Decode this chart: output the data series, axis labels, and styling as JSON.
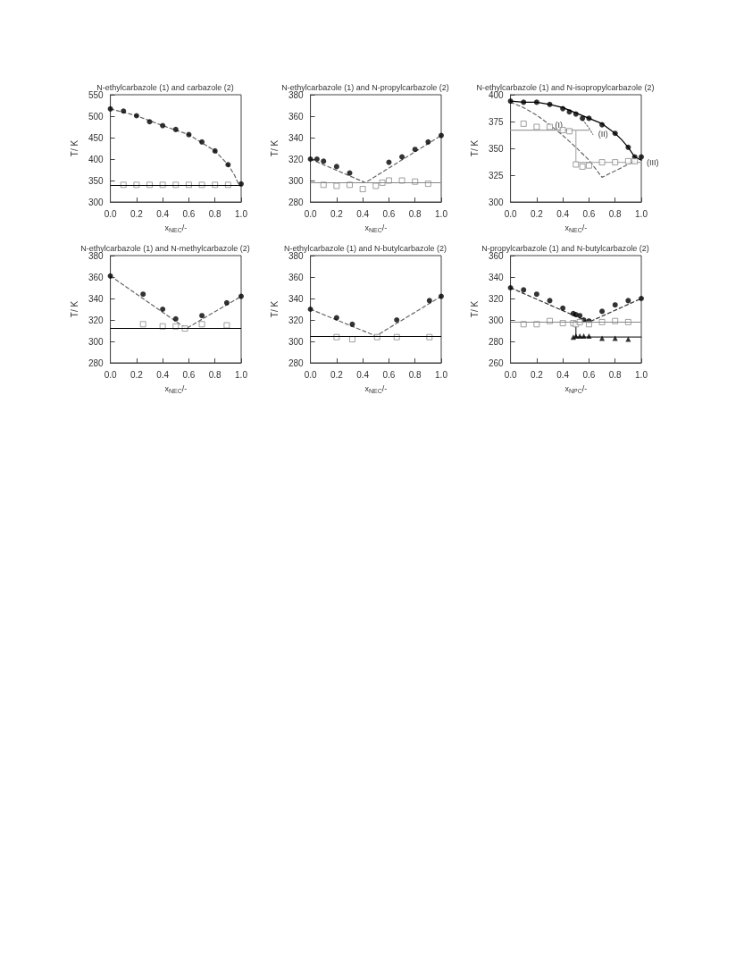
{
  "chart_data": [
    {
      "type": "scatter",
      "title": "N-ethylcarbazole (1) and carbazole (2)",
      "xlabel": "x$_{NEC}$/-",
      "ylabel": "T/ K",
      "xlim": [
        0,
        1
      ],
      "xticks": [
        {
          "value": 0,
          "label": "0.0"
        },
        {
          "value": 0.2,
          "label": "0.2"
        },
        {
          "value": 0.4,
          "label": "0.4"
        },
        {
          "value": 0.6,
          "label": "0.6"
        },
        {
          "value": 0.8,
          "label": "0.8"
        },
        {
          "value": 1,
          "label": "1.0"
        }
      ],
      "ylim": [
        300,
        550
      ],
      "yticks": [
        300,
        350,
        400,
        450,
        500,
        550
      ],
      "grid": false,
      "series": [
        {
          "type": "line",
          "color": "#666666",
          "line_style": "dashed",
          "marker": "none",
          "x": [
            0,
            0.2,
            0.4,
            0.6,
            0.8,
            0.9,
            0.95,
            0.98
          ],
          "values": [
            517,
            501,
            478,
            457,
            419,
            387,
            362,
            342
          ]
        },
        {
          "color": "#000000",
          "marker": "circle",
          "x": [
            0,
            0.1,
            0.2,
            0.3,
            0.4,
            0.5,
            0.6,
            0.7,
            0.8,
            0.9,
            1
          ],
          "values": [
            517,
            512,
            501,
            487,
            478,
            469,
            457,
            440,
            419,
            387,
            342
          ]
        },
        {
          "color": "#888888",
          "marker": "square",
          "x": [
            0.1,
            0.2,
            0.3,
            0.4,
            0.5,
            0.6,
            0.7,
            0.8,
            0.9
          ],
          "values": [
            340,
            340,
            340,
            340,
            340,
            340,
            340,
            340,
            340
          ]
        }
      ],
      "ref_lines": [
        {
          "axis": "y",
          "value": 340,
          "color": "#000000"
        }
      ]
    },
    {
      "type": "scatter",
      "title": "N-ethylcarbazole (1) and N-propylcarbazole (2)",
      "xlabel": "x$_{NEC}$/-",
      "ylabel": "T/ K",
      "xlim": [
        0,
        1
      ],
      "xticks": [
        {
          "value": 0,
          "label": "0.0"
        },
        {
          "value": 0.2,
          "label": "0.2"
        },
        {
          "value": 0.4,
          "label": "0.4"
        },
        {
          "value": 0.6,
          "label": "0.6"
        },
        {
          "value": 0.8,
          "label": "0.8"
        },
        {
          "value": 1,
          "label": "1.0"
        }
      ],
      "ylim": [
        280,
        380
      ],
      "yticks": [
        280,
        300,
        320,
        340,
        360,
        380
      ],
      "grid": false,
      "series": [
        {
          "type": "line",
          "color": "#666666",
          "line_style": "dashed",
          "marker": "none",
          "x": [
            0,
            0.42,
            1
          ],
          "values": [
            320,
            298,
            342
          ]
        },
        {
          "color": "#000000",
          "marker": "circle",
          "x": [
            0,
            0.05,
            0.1,
            0.2,
            0.3,
            0.6,
            0.7,
            0.8,
            0.9,
            1
          ],
          "values": [
            320,
            320,
            318,
            313,
            307,
            317,
            322,
            329,
            336,
            342
          ]
        },
        {
          "color": "#888888",
          "marker": "square",
          "x": [
            0.1,
            0.2,
            0.3,
            0.4,
            0.5,
            0.55,
            0.6,
            0.7,
            0.8,
            0.9
          ],
          "values": [
            296,
            295,
            296,
            292,
            295,
            298,
            300,
            300,
            299,
            297
          ]
        }
      ],
      "ref_lines": [
        {
          "axis": "y",
          "value": 298,
          "color": "#888888"
        }
      ]
    },
    {
      "type": "scatter",
      "title": "N-ethylcarbazole (1) and N-isopropylcarbazole (2)",
      "xlabel": "x$_{NEC}$/-",
      "ylabel": "T/ K",
      "xlim": [
        0,
        1
      ],
      "xticks": [
        {
          "value": 0,
          "label": "0.0"
        },
        {
          "value": 0.2,
          "label": "0.2"
        },
        {
          "value": 0.4,
          "label": "0.4"
        },
        {
          "value": 0.6,
          "label": "0.6"
        },
        {
          "value": 0.8,
          "label": "0.8"
        },
        {
          "value": 1,
          "label": "1.0"
        }
      ],
      "ylim": [
        300,
        400
      ],
      "yticks": [
        300,
        325,
        350,
        375,
        400
      ],
      "grid": false,
      "series": [
        {
          "type": "line",
          "color": "#000000",
          "line_style": "solid",
          "marker": "none",
          "x": [
            0,
            0.1,
            0.2,
            0.3,
            0.4,
            0.5,
            0.6,
            0.7,
            0.8,
            0.85,
            0.9,
            0.95,
            1
          ],
          "values": [
            394,
            393,
            393,
            391,
            388,
            383,
            378,
            373,
            364,
            358,
            351,
            342,
            339
          ]
        },
        {
          "type": "line",
          "color": "#666666",
          "line_style": "dashed",
          "marker": "none",
          "x": [
            0,
            0.1,
            0.2,
            0.3,
            0.4,
            0.5,
            0.6,
            0.7,
            0.95
          ],
          "values": [
            393,
            388,
            381,
            372,
            362,
            351,
            339,
            323,
            338
          ]
        },
        {
          "type": "line",
          "color": "#7a7a7a",
          "line_style": "dotted",
          "marker": "none",
          "x": [
            0.55,
            0.6,
            0.63
          ],
          "values": [
            377,
            369,
            363
          ]
        },
        {
          "type": "line",
          "color": "#a0a0a0",
          "line_style": "solid",
          "marker": "none",
          "x": [
            0,
            0.6
          ],
          "values": [
            367,
            367
          ]
        },
        {
          "type": "line",
          "color": "#b0b0b0",
          "line_style": "solid",
          "marker": "none",
          "x": [
            0.5,
            0.5,
            1
          ],
          "values": [
            367,
            337,
            337
          ]
        },
        {
          "color": "#000000",
          "marker": "circle",
          "x": [
            0,
            0.1,
            0.2,
            0.3,
            0.4,
            0.45,
            0.5,
            0.55,
            0.6,
            0.7,
            0.8,
            0.9,
            0.95,
            1
          ],
          "values": [
            394,
            393,
            393,
            391,
            387,
            384,
            382,
            378,
            378,
            372,
            364,
            351,
            342,
            342
          ]
        },
        {
          "color": "#888888",
          "marker": "square",
          "x": [
            0.1,
            0.2,
            0.3,
            0.4,
            0.45,
            0.5,
            0.55,
            0.6,
            0.7,
            0.8,
            0.9,
            0.95
          ],
          "values": [
            373,
            370,
            370,
            367,
            366,
            335,
            333,
            334,
            337,
            337,
            338,
            338
          ]
        }
      ],
      "annotations": [
        {
          "text": "(I)",
          "x": 0.3,
          "y": 372
        },
        {
          "text": "(II)",
          "x": 0.63,
          "y": 363
        },
        {
          "text": "(III)",
          "x": 1,
          "y": 337
        }
      ]
    },
    {
      "type": "scatter",
      "title": "N-ethylcarbazole (1) and N-methylcarbazole (2)",
      "xlabel": "x$_{NEC}$/-",
      "ylabel": "T/ K",
      "xlim": [
        0,
        1
      ],
      "xticks": [
        {
          "value": 0,
          "label": "0.0"
        },
        {
          "value": 0.2,
          "label": "0.2"
        },
        {
          "value": 0.4,
          "label": "0.4"
        },
        {
          "value": 0.6,
          "label": "0.6"
        },
        {
          "value": 0.8,
          "label": "0.8"
        },
        {
          "value": 1,
          "label": "1.0"
        }
      ],
      "ylim": [
        280,
        380
      ],
      "yticks": [
        280,
        300,
        320,
        340,
        360,
        380
      ],
      "grid": false,
      "series": [
        {
          "type": "line",
          "color": "#666666",
          "line_style": "dashed",
          "marker": "none",
          "x": [
            0,
            0.58,
            1
          ],
          "values": [
            361,
            312,
            342
          ]
        },
        {
          "color": "#000000",
          "marker": "circle",
          "x": [
            0,
            0.25,
            0.4,
            0.5,
            0.7,
            0.89,
            1
          ],
          "values": [
            361,
            344,
            330,
            321,
            324,
            336,
            342
          ]
        },
        {
          "color": "#888888",
          "marker": "square",
          "x": [
            0.25,
            0.4,
            0.5,
            0.57,
            0.7,
            0.89
          ],
          "values": [
            316,
            314,
            314,
            312,
            316,
            315
          ]
        }
      ],
      "ref_lines": [
        {
          "axis": "y",
          "value": 312,
          "color": "#000000"
        }
      ]
    },
    {
      "type": "scatter",
      "title": "N-ethylcarbazole (1) and N-butylcarbazole (2)",
      "xlabel": "x$_{NEC}$/-",
      "ylabel": "T/ K",
      "xlim": [
        0,
        1
      ],
      "xticks": [
        {
          "value": 0,
          "label": "0.0"
        },
        {
          "value": 0.2,
          "label": "0.2"
        },
        {
          "value": 0.4,
          "label": "0.4"
        },
        {
          "value": 0.6,
          "label": "0.6"
        },
        {
          "value": 0.8,
          "label": "0.8"
        },
        {
          "value": 1,
          "label": "1.0"
        }
      ],
      "ylim": [
        280,
        380
      ],
      "yticks": [
        280,
        300,
        320,
        340,
        360,
        380
      ],
      "grid": false,
      "series": [
        {
          "type": "line",
          "color": "#666666",
          "line_style": "dashed",
          "marker": "none",
          "x": [
            0,
            0.5,
            1
          ],
          "values": [
            330,
            305,
            342
          ]
        },
        {
          "color": "#000000",
          "marker": "circle",
          "x": [
            0,
            0.2,
            0.32,
            0.66,
            0.91,
            1
          ],
          "values": [
            330,
            322,
            316,
            320,
            338,
            342
          ]
        },
        {
          "color": "#888888",
          "marker": "square",
          "x": [
            0.2,
            0.32,
            0.51,
            0.66,
            0.91
          ],
          "values": [
            304,
            302,
            304,
            304,
            304
          ]
        }
      ],
      "ref_lines": [
        {
          "axis": "y",
          "value": 305,
          "color": "#000000"
        }
      ]
    },
    {
      "type": "scatter",
      "title": "N-propylcarbazole (1) and N-butylcarbazole (2)",
      "xlabel": "x$_{NPC}$/-",
      "ylabel": "T/ K",
      "xlim": [
        0,
        1
      ],
      "xticks": [
        {
          "value": 0,
          "label": "0.0"
        },
        {
          "value": 0.2,
          "label": "0.2"
        },
        {
          "value": 0.4,
          "label": "0.4"
        },
        {
          "value": 0.6,
          "label": "0.6"
        },
        {
          "value": 0.8,
          "label": "0.8"
        },
        {
          "value": 1,
          "label": "1.0"
        }
      ],
      "ylim": [
        260,
        360
      ],
      "yticks": [
        260,
        280,
        300,
        320,
        340,
        360
      ],
      "grid": false,
      "series": [
        {
          "type": "line",
          "color": "#333333",
          "line_style": "dashed",
          "marker": "none",
          "x": [
            0,
            0.6,
            1
          ],
          "values": [
            330,
            298,
            320
          ]
        },
        {
          "type": "line",
          "color": "#333333",
          "line_style": "solid",
          "marker": "none",
          "x": [
            0.5,
            0.5,
            1
          ],
          "values": [
            298,
            284,
            284
          ]
        },
        {
          "color": "#000000",
          "marker": "circle",
          "x": [
            0,
            0.1,
            0.2,
            0.3,
            0.4,
            0.48,
            0.5,
            0.53,
            0.56,
            0.6,
            0.7,
            0.8,
            0.9,
            1
          ],
          "values": [
            330,
            328,
            324,
            318,
            311,
            306,
            305,
            304,
            300,
            299,
            308,
            314,
            318,
            320
          ]
        },
        {
          "color": "#888888",
          "marker": "square",
          "x": [
            0.1,
            0.2,
            0.3,
            0.4,
            0.48,
            0.5,
            0.53,
            0.6,
            0.7,
            0.8,
            0.9
          ],
          "values": [
            296,
            296,
            299,
            297,
            297,
            296,
            298,
            296,
            298,
            299,
            298
          ]
        },
        {
          "color": "#000000",
          "marker": "triangle",
          "x": [
            0.48,
            0.5,
            0.53,
            0.56,
            0.6,
            0.7,
            0.8,
            0.9
          ],
          "values": [
            284,
            285,
            285,
            285,
            285,
            283,
            283,
            282
          ]
        }
      ],
      "ref_lines": [
        {
          "axis": "y",
          "value": 298,
          "color": "#888888"
        }
      ]
    }
  ]
}
